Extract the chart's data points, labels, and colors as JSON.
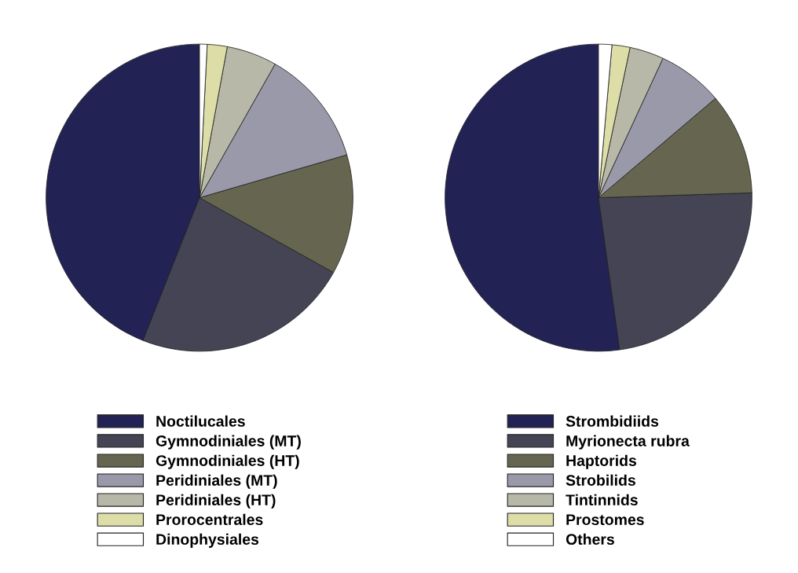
{
  "chart_data": [
    {
      "type": "pie",
      "categories": [
        "Noctilucales",
        "Gymnodiniales (MT)",
        "Gymnodiniales (HT)",
        "Peridiniales (MT)",
        "Peridiniales (HT)",
        "Prorocentrales",
        "Dinophysiales"
      ],
      "values": [
        44.0,
        22.9,
        12.6,
        12.3,
        5.3,
        2.1,
        0.8
      ],
      "colors": [
        "#222255",
        "#444455",
        "#666650",
        "#9999aa",
        "#b8b8a8",
        "#dddda8",
        "#ffffff"
      ],
      "legend": "bottom"
    },
    {
      "type": "pie",
      "categories": [
        "Strombidiids",
        "Myrionecta rubra",
        "Haptorids",
        "Strobilids",
        "Tintinnids",
        "Prostomes",
        "Others"
      ],
      "values": [
        52.2,
        23.3,
        10.7,
        6.9,
        3.6,
        1.9,
        1.4
      ],
      "colors": [
        "#222255",
        "#444455",
        "#666650",
        "#9999aa",
        "#b8b8a8",
        "#dddda8",
        "#ffffff"
      ],
      "legend": "bottom"
    }
  ]
}
